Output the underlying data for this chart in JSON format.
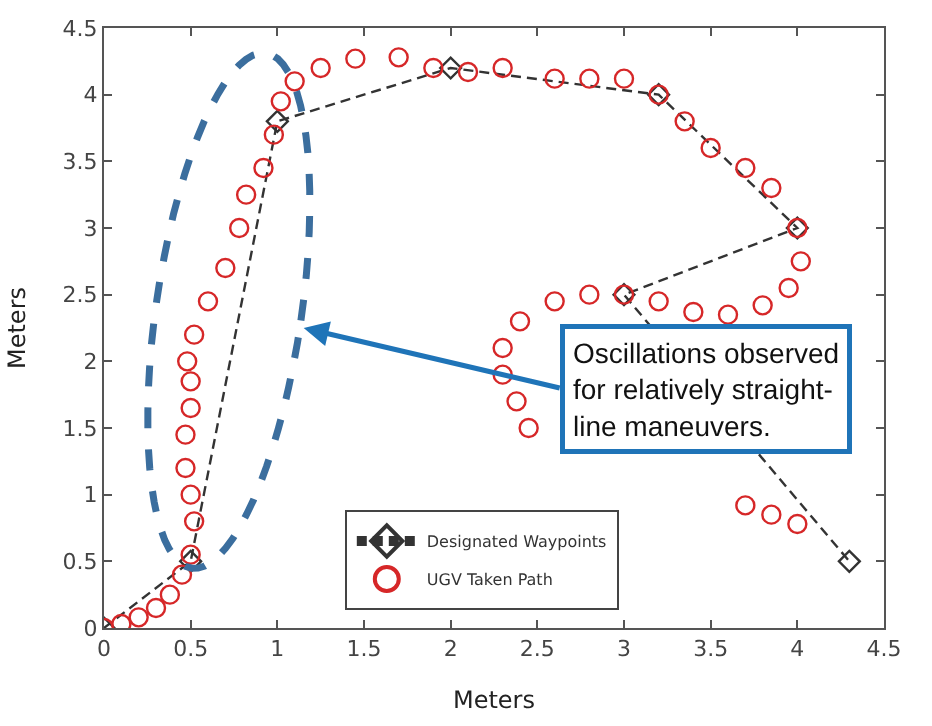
{
  "chart_data": {
    "type": "line",
    "xlabel": "Meters",
    "ylabel": "Meters",
    "xlim": [
      0,
      4.5
    ],
    "ylim": [
      0,
      4.5
    ],
    "xticks": [
      0,
      0.5,
      1,
      1.5,
      2,
      2.5,
      3,
      3.5,
      4,
      4.5
    ],
    "yticks": [
      0,
      0.5,
      1,
      1.5,
      2,
      2.5,
      3,
      3.5,
      4,
      4.5
    ],
    "grid": false,
    "legend": "bottom right",
    "series": [
      {
        "name": "Designated Waypoints",
        "color": "#333333",
        "marker": "diamond",
        "line_style": "dashed",
        "x": [
          0,
          0.5,
          1,
          2,
          3.2,
          4,
          3,
          4.3
        ],
        "values": [
          0,
          0.5,
          3.8,
          4.2,
          4.0,
          3.0,
          2.5,
          0.5
        ]
      },
      {
        "name": "UGV Taken Path",
        "type": "scatter",
        "color": "#d62728",
        "marker": "circle",
        "x": [
          0,
          0.1,
          0.2,
          0.3,
          0.38,
          0.45,
          0.5,
          0.52,
          0.5,
          0.47,
          0.47,
          0.5,
          0.5,
          0.48,
          0.52,
          0.6,
          0.7,
          0.78,
          0.82,
          0.92,
          0.98,
          1.02,
          1.1,
          1.25,
          1.45,
          1.7,
          1.9,
          2.1,
          2.3,
          2.6,
          2.8,
          3.0,
          3.2,
          3.35,
          3.5,
          3.7,
          3.85,
          4.0,
          4.02,
          3.95,
          3.8,
          3.6,
          3.4,
          3.2,
          3.0,
          2.8,
          2.6,
          2.4,
          2.3,
          2.3,
          2.38,
          2.45,
          3.5,
          3.7,
          3.85,
          4.0
        ],
        "values": [
          0,
          0.03,
          0.08,
          0.15,
          0.25,
          0.4,
          0.55,
          0.8,
          1.0,
          1.2,
          1.45,
          1.65,
          1.85,
          2.0,
          2.2,
          2.45,
          2.7,
          3.0,
          3.25,
          3.45,
          3.7,
          3.95,
          4.1,
          4.2,
          4.27,
          4.28,
          4.2,
          4.17,
          4.2,
          4.12,
          4.12,
          4.12,
          4.0,
          3.8,
          3.6,
          3.45,
          3.3,
          3.0,
          2.75,
          2.55,
          2.42,
          2.35,
          2.37,
          2.45,
          2.5,
          2.5,
          2.45,
          2.3,
          2.1,
          1.9,
          1.7,
          1.5,
          null,
          0.92,
          0.85,
          0.78
        ]
      }
    ],
    "annotations": [
      "Oscillations observed for relatively straight-line maneuvers."
    ]
  }
}
